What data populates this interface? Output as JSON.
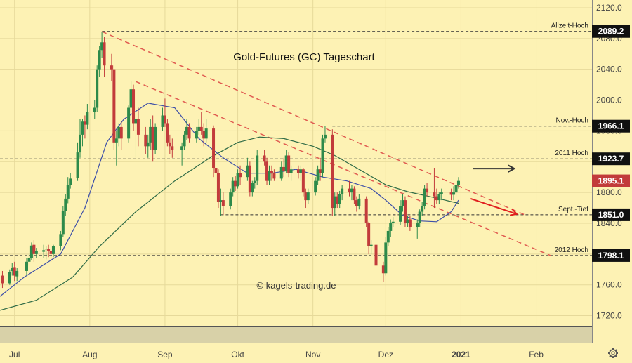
{
  "chart_data": {
    "type": "candlestick",
    "title": "Gold-Futures (GC) Tageschart",
    "watermark": "© kagels-trading.de",
    "settings_icon": "gear-icon",
    "colors": {
      "background": "#fdf2b4",
      "up": "#2d8a4a",
      "down": "#c23b3b",
      "trend": "#e05a50",
      "ma_fast": "#3d4fa8",
      "ma_slow": "#2f6b46",
      "badge": "#111111"
    },
    "ylim": [
      1705,
      2130
    ],
    "yticks": [
      "2120.0",
      "2080.0",
      "2040.0",
      "2000.0",
      "1960.0",
      "1920.0",
      "1880.0",
      "1840.0",
      "1800.0",
      "1760.0",
      "1720.0"
    ],
    "x_range": [
      "2020-06-25",
      "2021-02-24"
    ],
    "months": [
      {
        "label": "Jul",
        "date": "2020-07-01"
      },
      {
        "label": "Aug",
        "date": "2020-08-01"
      },
      {
        "label": "Sep",
        "date": "2020-09-01"
      },
      {
        "label": "Okt",
        "date": "2020-10-01"
      },
      {
        "label": "Nov",
        "date": "2020-11-01"
      },
      {
        "label": "Dez",
        "date": "2020-12-01"
      },
      {
        "label": "2021",
        "date": "2021-01-01",
        "bold": true
      },
      {
        "label": "Feb",
        "date": "2021-02-01"
      }
    ],
    "levels": [
      {
        "label": "Allzeit-Hoch",
        "value": 2089.2,
        "badge": "2089.2",
        "from": "2020-08-06"
      },
      {
        "label": "Nov.-Hoch",
        "value": 1966.1,
        "badge": "1966.1",
        "from": "2020-11-09"
      },
      {
        "label": "2011 Hoch",
        "value": 1923.7,
        "badge": "1923.7",
        "from": "2020-06-25"
      },
      {
        "label": "Sept.-Tief",
        "value": 1851.0,
        "badge": "1851.0",
        "from": "2020-09-24"
      },
      {
        "label": "2012 Hoch",
        "value": 1798.1,
        "badge": "1798.1",
        "from": "2020-06-25"
      }
    ],
    "last_price": "1895.1",
    "trendlines": [
      {
        "from": [
          "2020-08-06",
          2089
        ],
        "to": [
          "2021-01-28",
          1850
        ]
      },
      {
        "from": [
          "2020-08-20",
          2024
        ],
        "to": [
          "2021-02-07",
          1798
        ]
      }
    ],
    "arrows": [
      {
        "color": "#333333",
        "from": [
          "2021-01-06",
          1911
        ],
        "to": [
          "2021-01-23",
          1911
        ]
      },
      {
        "color": "#e02020",
        "from": [
          "2021-01-05",
          1872
        ],
        "to": [
          "2021-01-24",
          1852
        ]
      }
    ],
    "ma_fast": [
      [
        "2020-06-25",
        1745
      ],
      [
        "2020-07-05",
        1770
      ],
      [
        "2020-07-20",
        1800
      ],
      [
        "2020-07-30",
        1860
      ],
      [
        "2020-08-08",
        1945
      ],
      [
        "2020-08-15",
        1975
      ],
      [
        "2020-08-25",
        1996
      ],
      [
        "2020-09-05",
        1990
      ],
      [
        "2020-09-15",
        1950
      ],
      [
        "2020-09-25",
        1925
      ],
      [
        "2020-10-05",
        1905
      ],
      [
        "2020-10-15",
        1905
      ],
      [
        "2020-10-25",
        1910
      ],
      [
        "2020-11-05",
        1900
      ],
      [
        "2020-11-15",
        1895
      ],
      [
        "2020-11-25",
        1885
      ],
      [
        "2020-12-01",
        1870
      ],
      [
        "2020-12-08",
        1850
      ],
      [
        "2020-12-15",
        1843
      ],
      [
        "2020-12-22",
        1842
      ],
      [
        "2020-12-28",
        1855
      ],
      [
        "2020-12-31",
        1870
      ]
    ],
    "ma_slow": [
      [
        "2020-06-25",
        1727
      ],
      [
        "2020-07-10",
        1740
      ],
      [
        "2020-07-25",
        1770
      ],
      [
        "2020-08-05",
        1810
      ],
      [
        "2020-08-20",
        1855
      ],
      [
        "2020-09-05",
        1895
      ],
      [
        "2020-09-20",
        1926
      ],
      [
        "2020-10-01",
        1945
      ],
      [
        "2020-10-10",
        1952
      ],
      [
        "2020-10-20",
        1950
      ],
      [
        "2020-11-01",
        1940
      ],
      [
        "2020-11-10",
        1928
      ],
      [
        "2020-11-20",
        1910
      ],
      [
        "2020-12-01",
        1890
      ],
      [
        "2020-12-10",
        1881
      ],
      [
        "2020-12-20",
        1874
      ],
      [
        "2020-12-31",
        1866
      ]
    ],
    "ohlc": [
      [
        "2020-06-26",
        1772,
        1778,
        1756,
        1762
      ],
      [
        "2020-06-29",
        1762,
        1780,
        1760,
        1777
      ],
      [
        "2020-06-30",
        1778,
        1788,
        1772,
        1782
      ],
      [
        "2020-07-01",
        1783,
        1790,
        1765,
        1772
      ],
      [
        "2020-07-02",
        1771,
        1782,
        1765,
        1778
      ],
      [
        "2020-07-06",
        1778,
        1795,
        1772,
        1790
      ],
      [
        "2020-07-07",
        1790,
        1800,
        1785,
        1795
      ],
      [
        "2020-07-08",
        1795,
        1815,
        1792,
        1811
      ],
      [
        "2020-07-09",
        1812,
        1818,
        1790,
        1800
      ],
      [
        "2020-07-10",
        1800,
        1808,
        1795,
        1804
      ],
      [
        "2020-07-13",
        1803,
        1812,
        1795,
        1805
      ],
      [
        "2020-07-14",
        1806,
        1810,
        1793,
        1807
      ],
      [
        "2020-07-15",
        1807,
        1812,
        1796,
        1804
      ],
      [
        "2020-07-16",
        1804,
        1810,
        1790,
        1800
      ],
      [
        "2020-07-17",
        1800,
        1812,
        1796,
        1810
      ],
      [
        "2020-07-20",
        1810,
        1830,
        1805,
        1826
      ],
      [
        "2020-07-21",
        1826,
        1862,
        1822,
        1856
      ],
      [
        "2020-07-22",
        1856,
        1878,
        1850,
        1872
      ],
      [
        "2020-07-23",
        1872,
        1900,
        1866,
        1890
      ],
      [
        "2020-07-24",
        1890,
        1905,
        1885,
        1898
      ],
      [
        "2020-07-27",
        1899,
        1945,
        1895,
        1932
      ],
      [
        "2020-07-28",
        1932,
        1975,
        1925,
        1955
      ],
      [
        "2020-07-29",
        1955,
        1975,
        1940,
        1972
      ],
      [
        "2020-07-30",
        1972,
        1980,
        1950,
        1968
      ],
      [
        "2020-07-31",
        1968,
        1995,
        1962,
        1985
      ],
      [
        "2020-08-03",
        1985,
        2000,
        1975,
        1990
      ],
      [
        "2020-08-04",
        1990,
        2045,
        1985,
        2040
      ],
      [
        "2020-08-05",
        2040,
        2070,
        2030,
        2065
      ],
      [
        "2020-08-06",
        2065,
        2089,
        2055,
        2075
      ],
      [
        "2020-08-07",
        2075,
        2082,
        2030,
        2045
      ],
      [
        "2020-08-10",
        2045,
        2060,
        2025,
        2040
      ],
      [
        "2020-08-11",
        2040,
        2045,
        1935,
        1945
      ],
      [
        "2020-08-12",
        1945,
        1960,
        1915,
        1950
      ],
      [
        "2020-08-13",
        1950,
        1970,
        1940,
        1965
      ],
      [
        "2020-08-14",
        1965,
        1972,
        1935,
        1950
      ],
      [
        "2020-08-17",
        1950,
        1993,
        1945,
        1990
      ],
      [
        "2020-08-18",
        1990,
        2024,
        1985,
        2014
      ],
      [
        "2020-08-19",
        2014,
        2020,
        1960,
        1970
      ],
      [
        "2020-08-20",
        1970,
        1985,
        1925,
        1975
      ],
      [
        "2020-08-21",
        1975,
        1990,
        1940,
        1955
      ],
      [
        "2020-08-24",
        1955,
        1965,
        1930,
        1940
      ],
      [
        "2020-08-25",
        1940,
        1955,
        1925,
        1945
      ],
      [
        "2020-08-26",
        1945,
        1975,
        1935,
        1965
      ],
      [
        "2020-08-27",
        1965,
        1980,
        1920,
        1935
      ],
      [
        "2020-08-28",
        1935,
        1970,
        1930,
        1965
      ],
      [
        "2020-08-31",
        1965,
        1990,
        1960,
        1980
      ],
      [
        "2020-09-01",
        1980,
        2002,
        1965,
        1970
      ],
      [
        "2020-09-02",
        1970,
        1975,
        1940,
        1945
      ],
      [
        "2020-09-03",
        1945,
        1955,
        1930,
        1940
      ],
      [
        "2020-09-04",
        1940,
        1950,
        1925,
        1935
      ],
      [
        "2020-09-08",
        1935,
        1945,
        1915,
        1940
      ],
      [
        "2020-09-09",
        1940,
        1960,
        1935,
        1955
      ],
      [
        "2020-09-10",
        1955,
        1975,
        1948,
        1965
      ],
      [
        "2020-09-11",
        1965,
        1970,
        1945,
        1950
      ],
      [
        "2020-09-14",
        1950,
        1965,
        1945,
        1960
      ],
      [
        "2020-09-15",
        1960,
        1975,
        1955,
        1965
      ],
      [
        "2020-09-16",
        1965,
        1985,
        1955,
        1960
      ],
      [
        "2020-09-17",
        1960,
        1970,
        1940,
        1950
      ],
      [
        "2020-09-18",
        1950,
        1975,
        1945,
        1963
      ],
      [
        "2020-09-21",
        1963,
        1967,
        1900,
        1912
      ],
      [
        "2020-09-22",
        1912,
        1920,
        1895,
        1905
      ],
      [
        "2020-09-23",
        1905,
        1910,
        1860,
        1868
      ],
      [
        "2020-09-24",
        1868,
        1885,
        1850,
        1870
      ],
      [
        "2020-09-25",
        1870,
        1880,
        1851,
        1862
      ],
      [
        "2020-09-28",
        1862,
        1885,
        1858,
        1880
      ],
      [
        "2020-09-29",
        1880,
        1900,
        1875,
        1895
      ],
      [
        "2020-09-30",
        1895,
        1902,
        1882,
        1888
      ],
      [
        "2020-10-01",
        1888,
        1910,
        1885,
        1905
      ],
      [
        "2020-10-02",
        1905,
        1915,
        1890,
        1900
      ],
      [
        "2020-10-05",
        1900,
        1925,
        1895,
        1915
      ],
      [
        "2020-10-06",
        1915,
        1920,
        1875,
        1880
      ],
      [
        "2020-10-07",
        1880,
        1895,
        1875,
        1892
      ],
      [
        "2020-10-08",
        1892,
        1900,
        1885,
        1895
      ],
      [
        "2020-10-09",
        1895,
        1935,
        1890,
        1928
      ],
      [
        "2020-10-12",
        1928,
        1935,
        1915,
        1920
      ],
      [
        "2020-10-13",
        1920,
        1925,
        1890,
        1895
      ],
      [
        "2020-10-14",
        1895,
        1915,
        1890,
        1908
      ],
      [
        "2020-10-15",
        1908,
        1915,
        1895,
        1905
      ],
      [
        "2020-10-16",
        1905,
        1910,
        1895,
        1898
      ],
      [
        "2020-10-19",
        1898,
        1920,
        1895,
        1913
      ],
      [
        "2020-10-20",
        1913,
        1925,
        1900,
        1908
      ],
      [
        "2020-10-21",
        1908,
        1935,
        1905,
        1928
      ],
      [
        "2020-10-22",
        1928,
        1932,
        1900,
        1905
      ],
      [
        "2020-10-23",
        1905,
        1915,
        1895,
        1910
      ],
      [
        "2020-10-26",
        1910,
        1915,
        1898,
        1905
      ],
      [
        "2020-10-27",
        1905,
        1915,
        1895,
        1910
      ],
      [
        "2020-10-28",
        1910,
        1912,
        1875,
        1880
      ],
      [
        "2020-10-29",
        1880,
        1885,
        1860,
        1870
      ],
      [
        "2020-10-30",
        1870,
        1885,
        1865,
        1880
      ],
      [
        "2020-11-02",
        1880,
        1900,
        1876,
        1895
      ],
      [
        "2020-11-03",
        1895,
        1915,
        1890,
        1910
      ],
      [
        "2020-11-04",
        1910,
        1925,
        1895,
        1905
      ],
      [
        "2020-11-05",
        1905,
        1955,
        1900,
        1950
      ],
      [
        "2020-11-06",
        1950,
        1966,
        1945,
        1955
      ],
      [
        "2020-11-09",
        1955,
        1962,
        1850,
        1860
      ],
      [
        "2020-11-10",
        1860,
        1880,
        1850,
        1875
      ],
      [
        "2020-11-11",
        1875,
        1880,
        1860,
        1865
      ],
      [
        "2020-11-12",
        1865,
        1882,
        1860,
        1878
      ],
      [
        "2020-11-13",
        1878,
        1890,
        1870,
        1885
      ],
      [
        "2020-11-16",
        1885,
        1895,
        1875,
        1880
      ],
      [
        "2020-11-17",
        1880,
        1890,
        1870,
        1885
      ],
      [
        "2020-11-18",
        1885,
        1888,
        1865,
        1870
      ],
      [
        "2020-11-19",
        1870,
        1875,
        1855,
        1862
      ],
      [
        "2020-11-20",
        1862,
        1878,
        1858,
        1872
      ],
      [
        "2020-11-23",
        1872,
        1875,
        1835,
        1840
      ],
      [
        "2020-11-24",
        1840,
        1842,
        1800,
        1810
      ],
      [
        "2020-11-25",
        1810,
        1818,
        1800,
        1812
      ],
      [
        "2020-11-27",
        1812,
        1815,
        1780,
        1785
      ],
      [
        "2020-11-30",
        1785,
        1790,
        1764,
        1775
      ],
      [
        "2020-12-01",
        1775,
        1822,
        1772,
        1815
      ],
      [
        "2020-12-02",
        1815,
        1835,
        1810,
        1830
      ],
      [
        "2020-12-03",
        1830,
        1845,
        1822,
        1840
      ],
      [
        "2020-12-04",
        1840,
        1848,
        1835,
        1842
      ],
      [
        "2020-12-07",
        1842,
        1870,
        1838,
        1862
      ],
      [
        "2020-12-08",
        1862,
        1878,
        1855,
        1870
      ],
      [
        "2020-12-09",
        1870,
        1875,
        1835,
        1840
      ],
      [
        "2020-12-10",
        1840,
        1850,
        1835,
        1845
      ],
      [
        "2020-12-11",
        1845,
        1850,
        1830,
        1835
      ],
      [
        "2020-12-14",
        1835,
        1845,
        1820,
        1840
      ],
      [
        "2020-12-15",
        1840,
        1858,
        1835,
        1855
      ],
      [
        "2020-12-16",
        1855,
        1868,
        1850,
        1862
      ],
      [
        "2020-12-17",
        1862,
        1890,
        1858,
        1885
      ],
      [
        "2020-12-18",
        1885,
        1892,
        1875,
        1880
      ],
      [
        "2020-12-21",
        1880,
        1912,
        1860,
        1875
      ],
      [
        "2020-12-22",
        1875,
        1885,
        1865,
        1870
      ],
      [
        "2020-12-23",
        1870,
        1880,
        1865,
        1878
      ],
      [
        "2020-12-24",
        1878,
        1885,
        1870,
        1880
      ],
      [
        "2020-12-28",
        1880,
        1885,
        1870,
        1877
      ],
      [
        "2020-12-29",
        1877,
        1888,
        1870,
        1880
      ],
      [
        "2020-12-30",
        1880,
        1895,
        1875,
        1890
      ],
      [
        "2020-12-31",
        1890,
        1900,
        1885,
        1895
      ]
    ]
  }
}
